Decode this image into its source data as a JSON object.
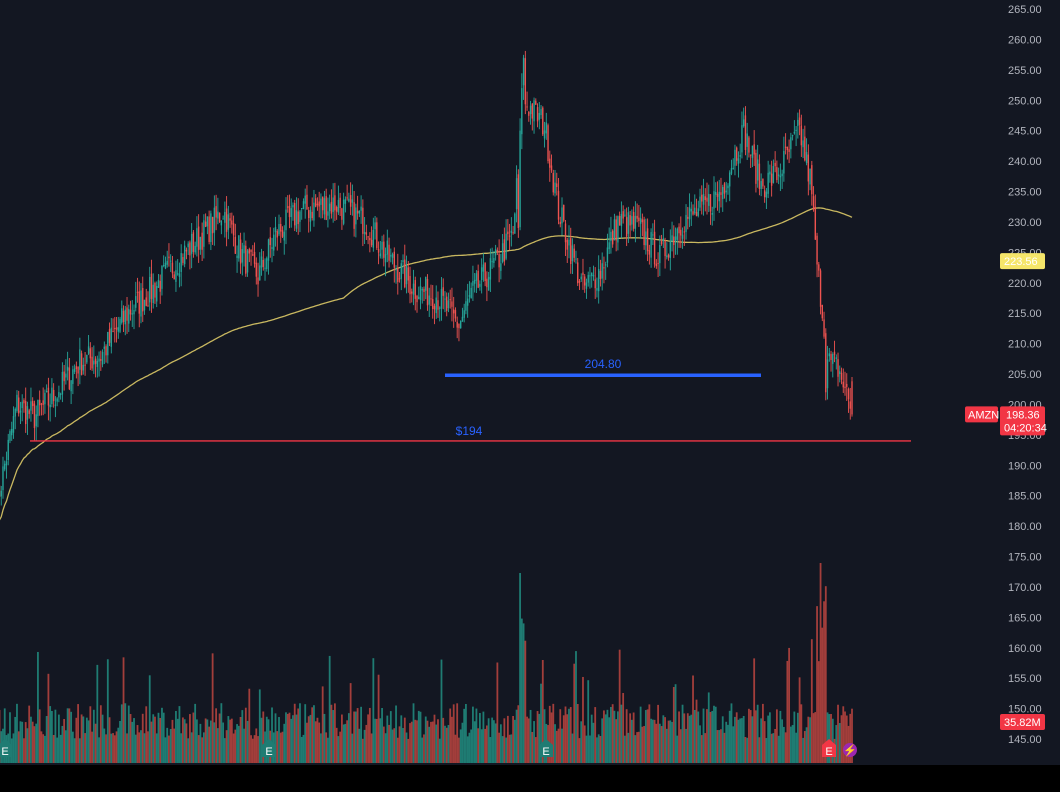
{
  "symbol": "AMZN",
  "colors": {
    "background": "#131722",
    "frame": "#000000",
    "up": "#26a69a",
    "down": "#ef5350",
    "volume_up": "#1f7c73",
    "volume_down": "#a33e3b",
    "ma": "#c9b860",
    "ma_badge_bg": "#f5e66a",
    "ma_badge_text": "#131722",
    "price_badge_bg": "#f23645",
    "hline_red": "#f23645",
    "hline_blue": "#2962ff",
    "axis_text": "#b2b5be",
    "earnings_marker": "#1f7c73",
    "earnings_marker_next": "#f23645",
    "dividend_marker": "#9c27b0"
  },
  "price_axis": {
    "min": 145,
    "max": 265,
    "step": 5,
    "labels": [
      "265.00",
      "260.00",
      "255.00",
      "250.00",
      "245.00",
      "240.00",
      "235.00",
      "230.00",
      "225.00",
      "220.00",
      "215.00",
      "210.00",
      "205.00",
      "200.00",
      "195.00",
      "190.00",
      "185.00",
      "180.00",
      "175.00",
      "170.00",
      "165.00",
      "160.00",
      "155.00",
      "150.00",
      "145.00"
    ]
  },
  "badges": {
    "ma_value": "223.56",
    "price_symbol": "AMZN",
    "price_value": "198.36",
    "countdown": "04:20:34",
    "volume_value": "35.82M"
  },
  "annotations": {
    "red_line_label": "$194",
    "red_line_price": 194,
    "blue_line_label": "204.80",
    "blue_line_price": 204.8
  },
  "event_markers": {
    "earnings_label": "E",
    "earnings_next_label": "E",
    "dividend_label": "⚡"
  },
  "chart_data": {
    "type": "candlestick",
    "y_range": [
      145,
      265
    ],
    "series": [
      {
        "name": "AMZN",
        "type": "candlestick",
        "values": []
      },
      {
        "name": "",
        "type": "line",
        "values": []
      },
      {
        "name": "",
        "type": "volume",
        "values": []
      }
    ],
    "key_points": [
      {
        "label": "low start",
        "price": 183
      },
      {
        "label": "peak",
        "price": 258
      },
      {
        "label": "second peak",
        "price": 248
      },
      {
        "label": "last",
        "price": 198.36
      }
    ]
  }
}
